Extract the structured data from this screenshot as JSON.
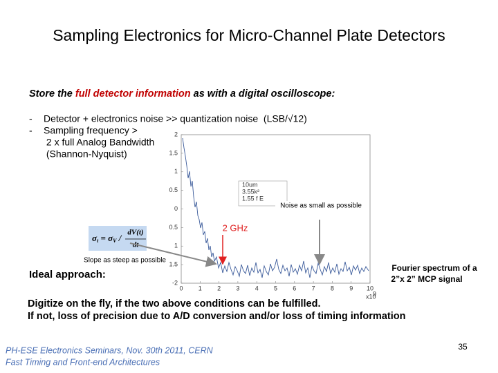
{
  "header": {
    "title": "Sampling Electronics for Micro-Channel Plate Detectors"
  },
  "intro": {
    "before": "Store the ",
    "highlight": "full detector information",
    "after": " as with a digital oscilloscope:"
  },
  "bullets": [
    {
      "marker": "-",
      "lines": [
        "Detector + electronics noise >> quantization noise  (LSB/√12)"
      ]
    },
    {
      "marker": "-",
      "lines": [
        "Sampling frequency >",
        " 2 x full Analog Bandwidth",
        " (Shannon-Nyquist)"
      ]
    }
  ],
  "formula": {
    "lhs": "σ",
    "lhs_sub": "t",
    "eq": " = σ",
    "rhs_sub": "V",
    "sep": " / ",
    "num": "dV(t)",
    "den": "dt"
  },
  "plot": {
    "yticks": [
      "2",
      "1.5",
      "1",
      "0.5",
      "0",
      "0.5",
      "1",
      "1.5",
      "-2"
    ],
    "xticks": [
      "0",
      "1",
      "2",
      "3",
      "4",
      "5",
      "6",
      "7",
      "8",
      "9",
      "10"
    ],
    "xexp": "x10",
    "xexp_power": "9",
    "legend": [
      "10um",
      "3.55k²",
      "1.55 f E"
    ]
  },
  "annotations": {
    "noise": "Noise as small as possible",
    "freq": "2 GHz",
    "slope": "Slope as steep as possible",
    "ideal": "Ideal approach:",
    "fourier": [
      "Fourier spectrum  of a",
      "2”x 2” MCP signal"
    ]
  },
  "conclusion": [
    "Digitize on the fly, if the two above conditions can be fulfilled.",
    "If not, loss of precision due to A/D conversion and/or loss of timing information"
  ],
  "footer": {
    "lines": [
      "PH-ESE Electronics Seminars,  Nov. 30th 2011, CERN",
      "Fast Timing and Front-end Architectures"
    ],
    "page": "35"
  }
}
